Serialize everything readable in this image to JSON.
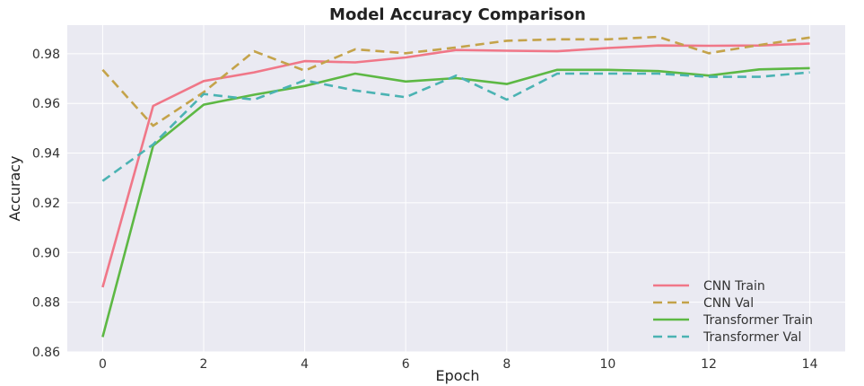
{
  "chart_data": {
    "type": "line",
    "title": "Model Accuracy Comparison",
    "xlabel": "Epoch",
    "ylabel": "Accuracy",
    "xlim": [
      -0.7,
      14.7
    ],
    "ylim": [
      0.86,
      0.9915
    ],
    "xticks": [
      0,
      2,
      4,
      6,
      8,
      10,
      12,
      14
    ],
    "yticks": [
      0.86,
      0.88,
      0.9,
      0.92,
      0.94,
      0.96,
      0.98
    ],
    "ytick_labels": [
      "0.86",
      "0.88",
      "0.90",
      "0.92",
      "0.94",
      "0.96",
      "0.98"
    ],
    "grid": true,
    "legend_position": "lower-right",
    "x": [
      0,
      1,
      2,
      3,
      4,
      5,
      6,
      7,
      8,
      9,
      10,
      11,
      12,
      13,
      14
    ],
    "series": [
      {
        "name": "CNN Train",
        "color": "#f07788",
        "dash": "solid",
        "values": [
          0.886,
          0.959,
          0.969,
          0.9725,
          0.977,
          0.9765,
          0.9785,
          0.9815,
          0.9812,
          0.981,
          0.9823,
          0.9833,
          0.9832,
          0.9833,
          0.9841
        ]
      },
      {
        "name": "CNN Val",
        "color": "#c4a34a",
        "dash": "dashed",
        "values": [
          0.9735,
          0.951,
          0.9645,
          0.981,
          0.9732,
          0.9818,
          0.9802,
          0.9825,
          0.9852,
          0.9858,
          0.9858,
          0.9868,
          0.9802,
          0.9835,
          0.9865
        ]
      },
      {
        "name": "Transformer Train",
        "color": "#5db844",
        "dash": "solid",
        "values": [
          0.866,
          0.943,
          0.9595,
          0.9635,
          0.967,
          0.972,
          0.9688,
          0.9702,
          0.9678,
          0.9735,
          0.9735,
          0.973,
          0.9712,
          0.9737,
          0.9742
        ]
      },
      {
        "name": "Transformer Val",
        "color": "#4bb3b3",
        "dash": "dashed",
        "values": [
          0.9288,
          0.9435,
          0.9638,
          0.9615,
          0.9693,
          0.9652,
          0.9625,
          0.9712,
          0.9615,
          0.972,
          0.972,
          0.972,
          0.9707,
          0.9707,
          0.9725
        ]
      }
    ]
  }
}
